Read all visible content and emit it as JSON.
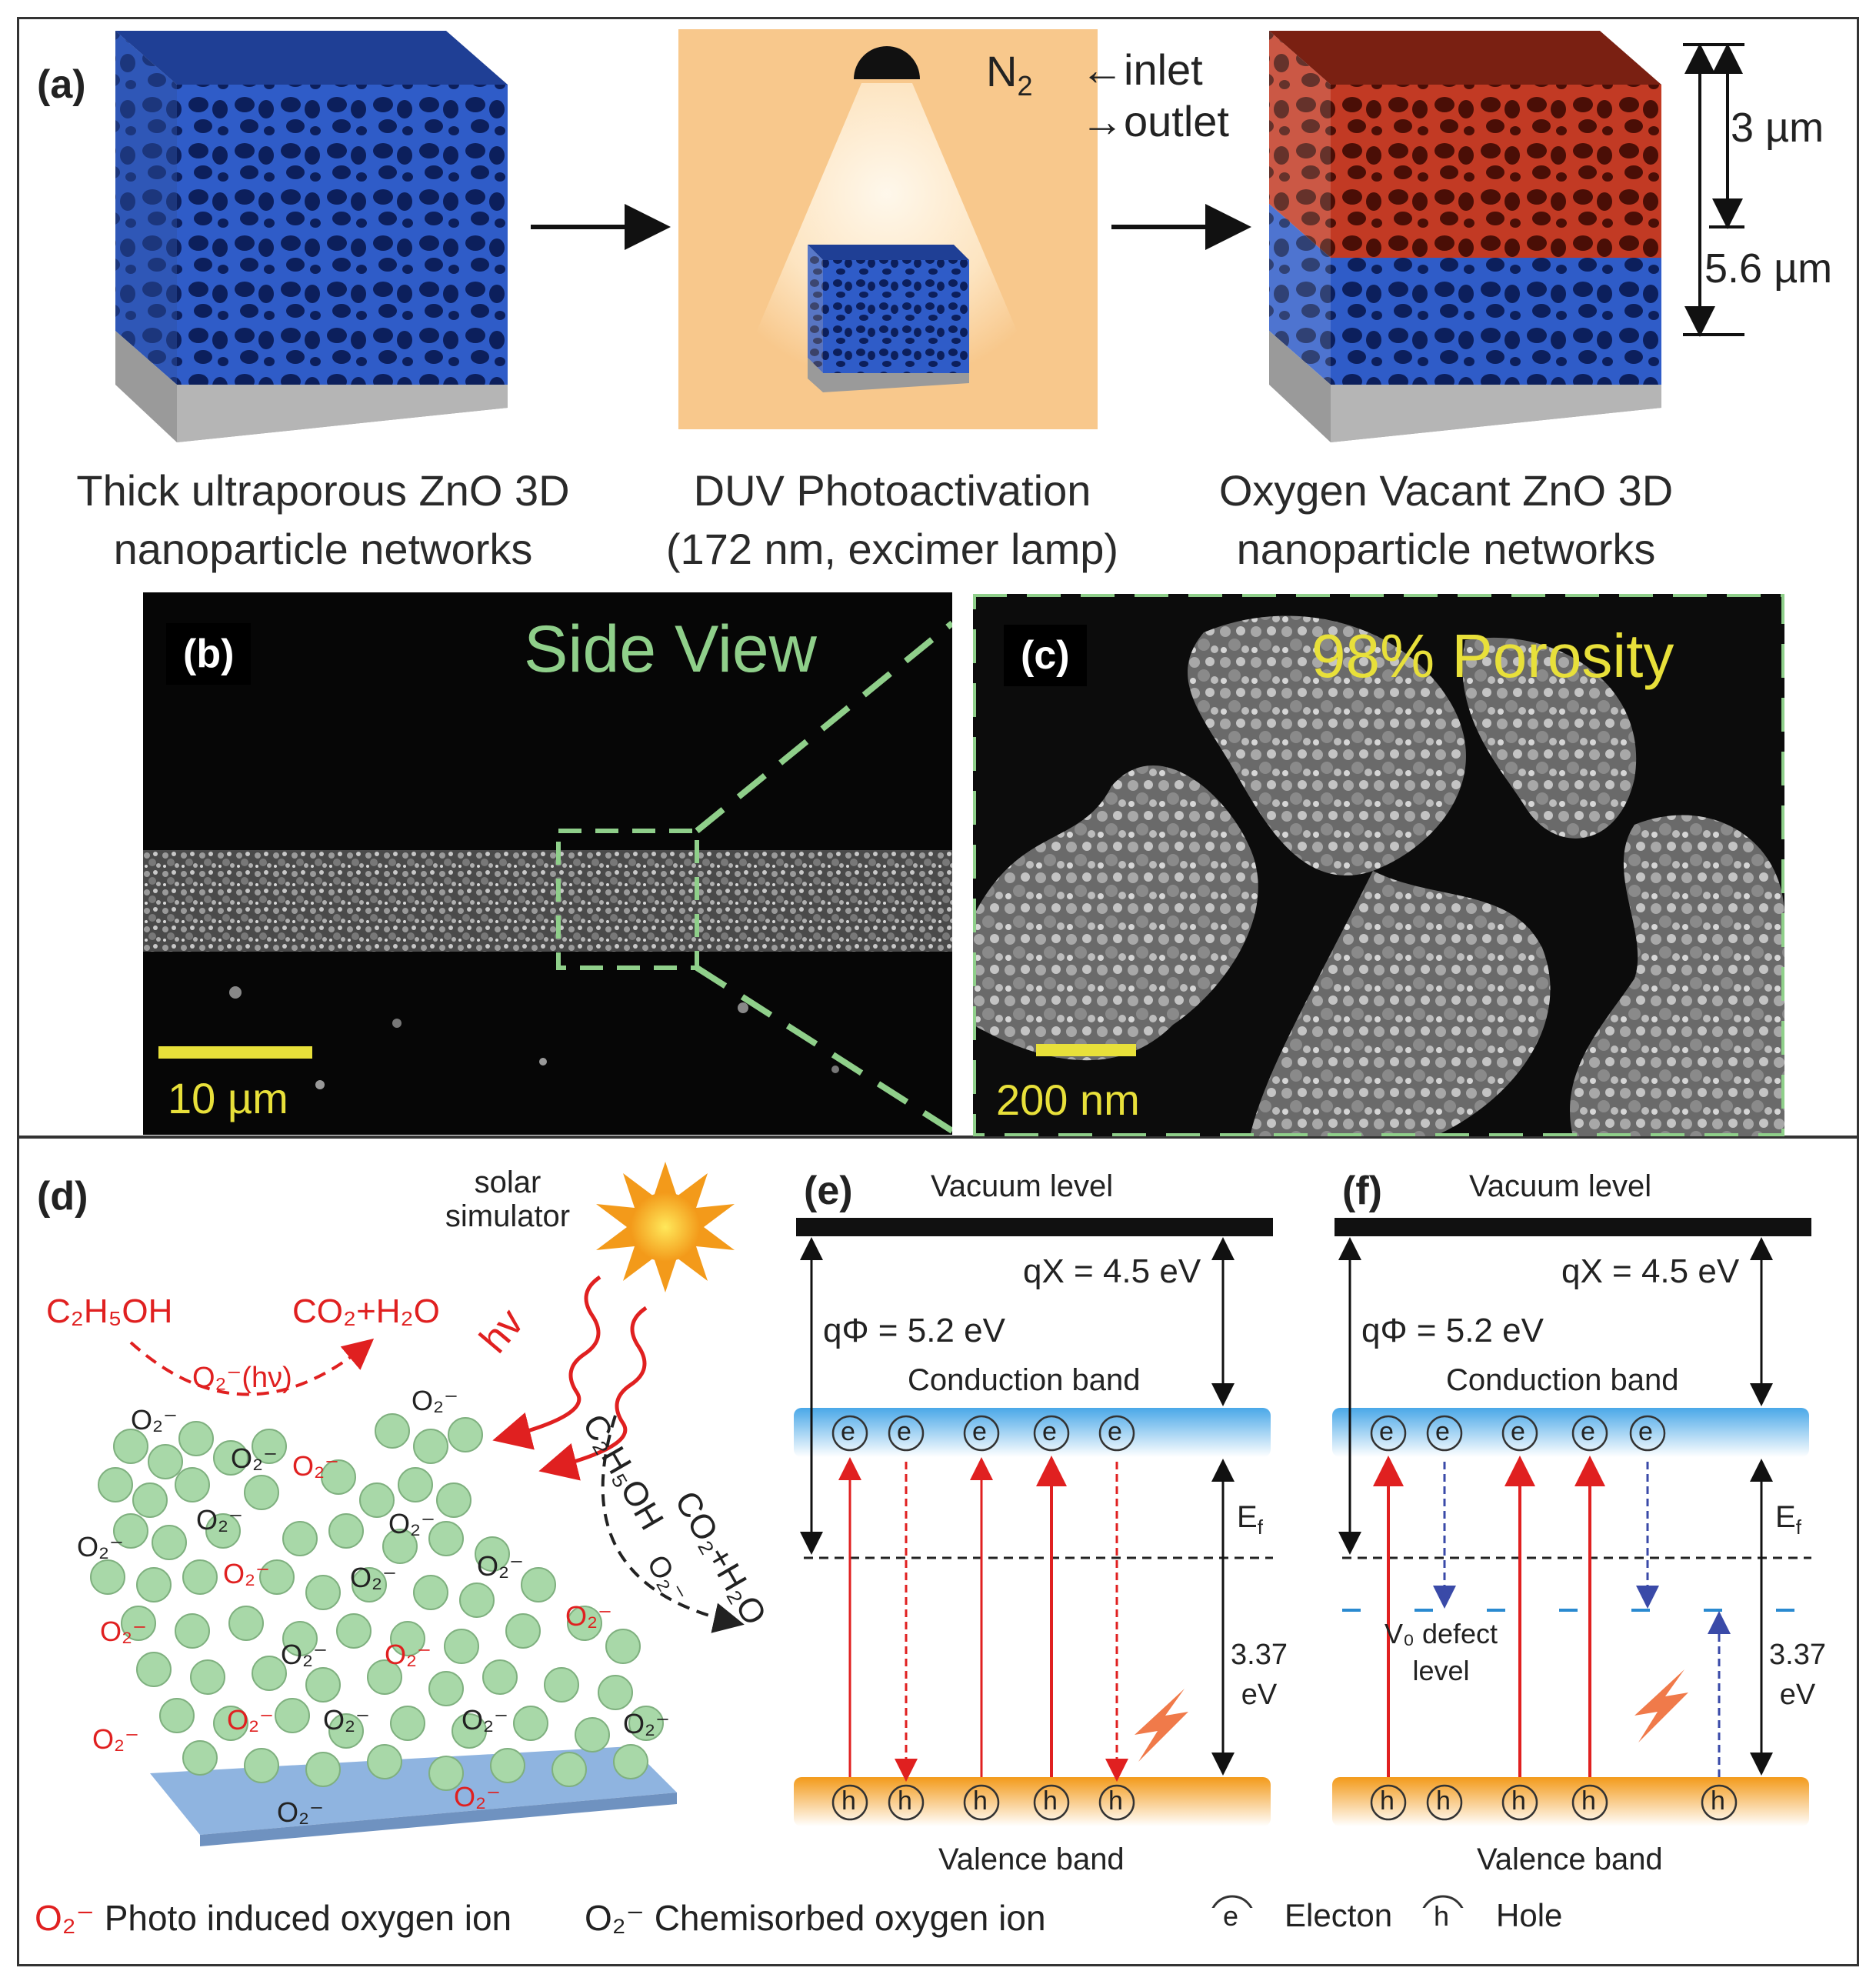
{
  "panel_a": {
    "label": "(a)",
    "caption_left": [
      "Thick ultraporous ZnO 3D",
      "nanoparticle networks"
    ],
    "caption_mid": [
      "DUV Photoactivation",
      "(172 nm, excimer lamp)"
    ],
    "caption_right": [
      "Oxygen Vacant ZnO 3D",
      "nanoparticle networks"
    ],
    "gas": "N",
    "gas_sub": "2",
    "inlet": "inlet",
    "outlet": "outlet",
    "dim_top": "3 µm",
    "dim_total": "5.6 µm",
    "colors": {
      "pristine": "#2f5cc8",
      "activated": "#b8321e",
      "chamber": "#f8c88c",
      "substrate": "#9a9a9a"
    }
  },
  "panel_b": {
    "label": "(b)",
    "title": "Side View",
    "scale": "10 µm",
    "title_color": "#8fcf8a"
  },
  "panel_c": {
    "label": "(c)",
    "title": "98% Porosity",
    "scale": "200 nm",
    "title_color": "#e8e03a"
  },
  "panel_d": {
    "label": "(d)",
    "solar": [
      "solar",
      "simulator"
    ],
    "hv": "hv",
    "reactant": "C₂H₅OH",
    "product": "CO₂+H₂O",
    "arc_label": "O₂⁻(hν)",
    "ethanol_side": "C₂H₅OH",
    "o2_side": "O₂⁻",
    "product_side": "CO₂+H₂O",
    "ion": "O₂⁻",
    "colors": {
      "photo": "#e02020",
      "chem": "#222222",
      "particle": "#a8d8a8",
      "slab": "#8fb4e0"
    }
  },
  "panel_e": {
    "label": "(e)",
    "vacuum": "Vacuum level",
    "chi": "qX = 4.5 eV",
    "phi": "qΦ = 5.2 eV",
    "cb": "Conduction band",
    "ef": "E",
    "ef_sub": "f",
    "gap": [
      "3.37",
      "eV"
    ],
    "vb": "Valence band",
    "e": "e",
    "h": "h"
  },
  "panel_f": {
    "label": "(f)",
    "vacuum": "Vacuum level",
    "chi": "qX = 4.5 eV",
    "phi": "qΦ = 5.2 eV",
    "cb": "Conduction band",
    "ef": "E",
    "ef_sub": "f",
    "gap": [
      "3.37",
      "eV"
    ],
    "vb": "Valence band",
    "defect": [
      "V₀ defect",
      "level"
    ],
    "e": "e",
    "h": "h"
  },
  "legend": {
    "photo_ion": "O₂⁻",
    "photo_text": "Photo induced oxygen ion",
    "chem_ion": "O₂⁻",
    "chem_text": "Chemisorbed oxygen ion",
    "e_sym": "e",
    "e_text": "Electon",
    "h_sym": "h",
    "h_text": "Hole"
  }
}
